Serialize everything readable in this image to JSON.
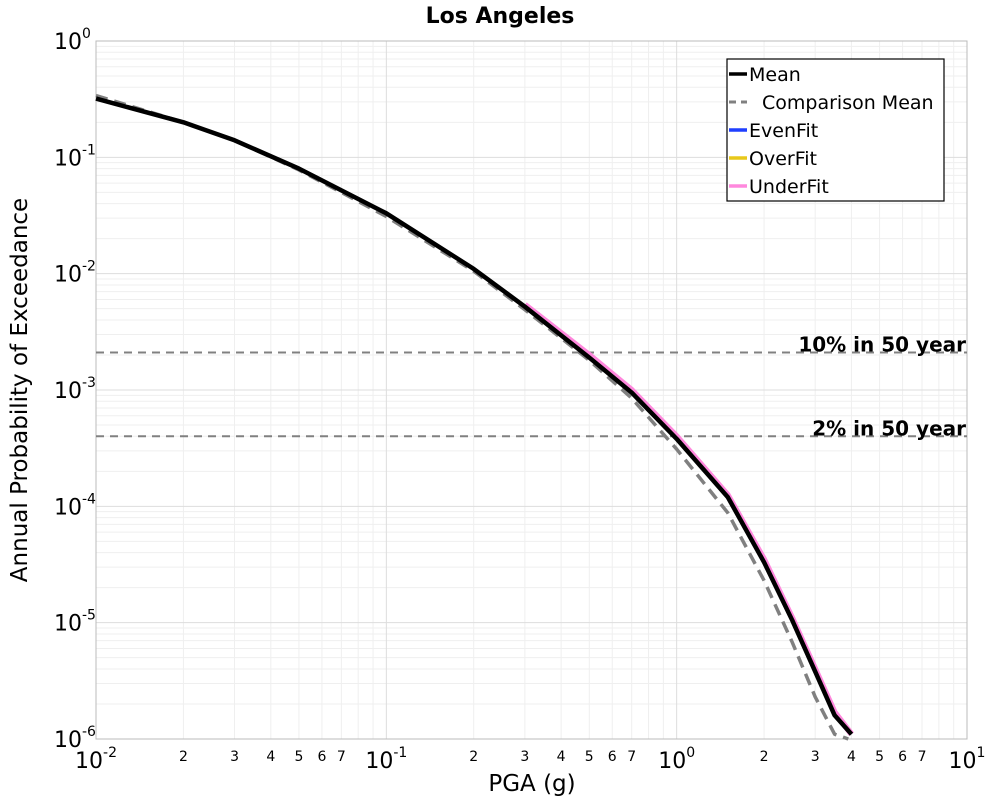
{
  "chart_data": {
    "type": "line",
    "title": "Los Angeles",
    "xlabel": "PGA (g)",
    "ylabel": "Annual Probability of Exceedance",
    "xscale": "log",
    "yscale": "log",
    "xlim": [
      0.01,
      10
    ],
    "ylim": [
      1e-06,
      1
    ],
    "grid": "on (major and minor)",
    "legend_position": "top-right",
    "x_major_ticks": [
      {
        "base": "10",
        "exp": "-2"
      },
      {
        "base": "10",
        "exp": "-1"
      },
      {
        "base": "10",
        "exp": "0"
      },
      {
        "base": "10",
        "exp": "1"
      }
    ],
    "x_minor_tick_labels": [
      "2",
      "3",
      "4",
      "5",
      "6",
      "7"
    ],
    "y_major_ticks": [
      {
        "base": "10",
        "exp": "0"
      },
      {
        "base": "10",
        "exp": "-1"
      },
      {
        "base": "10",
        "exp": "-2"
      },
      {
        "base": "10",
        "exp": "-3"
      },
      {
        "base": "10",
        "exp": "-4"
      },
      {
        "base": "10",
        "exp": "-5"
      },
      {
        "base": "10",
        "exp": "-6"
      }
    ],
    "reference_lines": [
      {
        "label": "10% in 50 year",
        "y": 0.0021
      },
      {
        "label": "2% in 50 year",
        "y": 0.0004
      }
    ],
    "series": [
      {
        "name": "Mean",
        "color": "#000000",
        "style": "solid",
        "x": [
          0.01,
          0.02,
          0.03,
          0.05,
          0.07,
          0.1,
          0.2,
          0.3,
          0.5,
          0.7,
          1.0,
          1.5,
          2.0,
          2.5,
          3.0,
          3.5,
          4.0
        ],
        "y": [
          0.32,
          0.2,
          0.14,
          0.08,
          0.052,
          0.033,
          0.011,
          0.0052,
          0.0019,
          0.00095,
          0.00038,
          0.00012,
          3.3e-05,
          1.05e-05,
          3.8e-06,
          1.6e-06,
          1.1e-06
        ]
      },
      {
        "name": "Comparison Mean",
        "color": "#808080",
        "style": "dashed",
        "x": [
          0.01,
          0.02,
          0.03,
          0.05,
          0.07,
          0.1,
          0.2,
          0.3,
          0.5,
          0.7,
          1.0,
          1.5,
          2.0,
          2.5,
          3.0,
          3.5,
          3.9
        ],
        "y": [
          0.34,
          0.2,
          0.14,
          0.078,
          0.05,
          0.031,
          0.0105,
          0.0049,
          0.0018,
          0.00085,
          0.00031,
          8.8e-05,
          2.3e-05,
          6.8e-06,
          2.3e-06,
          1.1e-06,
          1e-06
        ]
      },
      {
        "name": "EvenFit",
        "color": "#1f3fff",
        "style": "solid",
        "x": [],
        "y": []
      },
      {
        "name": "OverFit",
        "color": "#e8c81a",
        "style": "solid",
        "x": [],
        "y": []
      },
      {
        "name": "UnderFit",
        "color": "#ff88dd",
        "style": "solid",
        "x": [
          0.3,
          0.5,
          0.7,
          1.0,
          1.5,
          2.0,
          2.5,
          3.0,
          3.5,
          4.0
        ],
        "y": [
          0.0054,
          0.002,
          0.001,
          0.0004,
          0.000125,
          3.5e-05,
          1.1e-05,
          4e-06,
          1.7e-06,
          1.1e-06
        ]
      }
    ]
  }
}
